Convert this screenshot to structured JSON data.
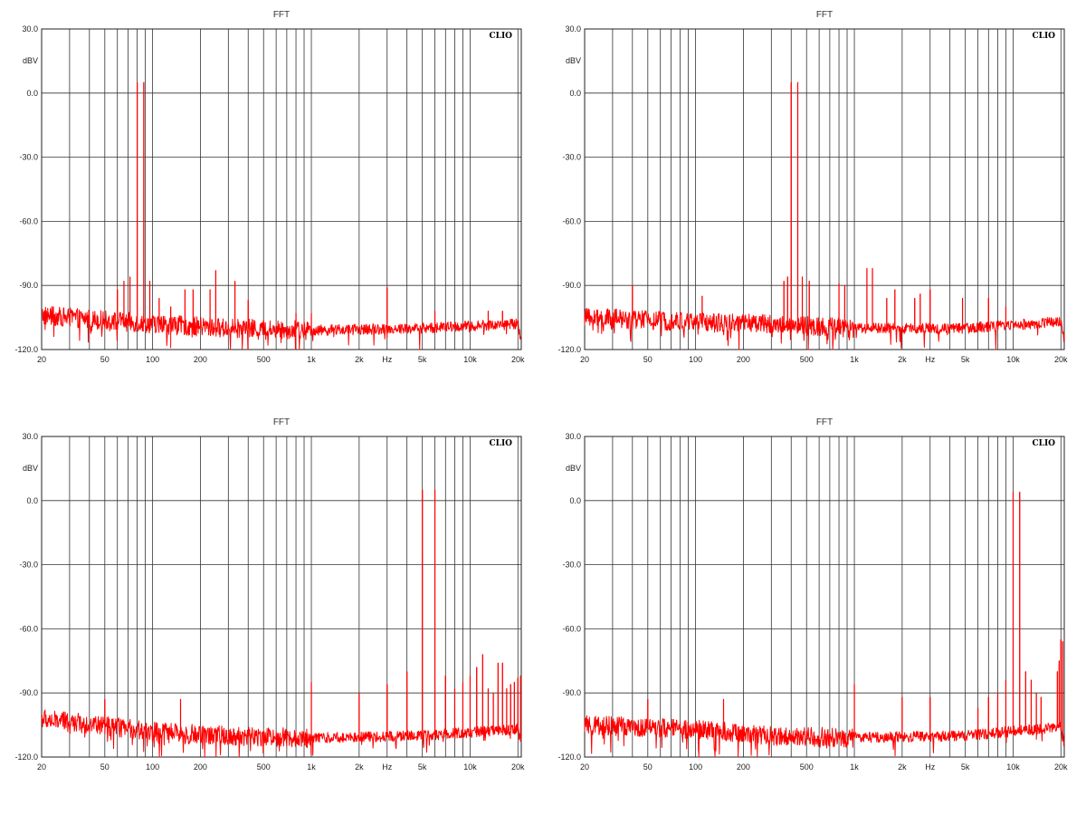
{
  "chart_data": [
    {
      "type": "line",
      "title": "FFT",
      "ylabel": "dBV",
      "xlabel": "Hz",
      "brand": "CLIO",
      "x_scale": "log",
      "xlim": [
        20,
        21000
      ],
      "ylim": [
        -120,
        30
      ],
      "grid": true,
      "y_ticks": [
        30,
        0,
        -30,
        -60,
        -90,
        -120
      ],
      "y_tick_labels": [
        "30.0",
        "0.0",
        "-30.0",
        "-60.0",
        "-90.0",
        "-120.0"
      ],
      "x_ticks": [
        20,
        50,
        100,
        200,
        500,
        1000,
        2000,
        3000,
        5000,
        10000,
        20000
      ],
      "x_tick_labels": [
        "20",
        "50",
        "100",
        "200",
        "500",
        "1k",
        "2k",
        "Hz",
        "5k",
        "10k",
        "20k"
      ],
      "color": "#ff0000",
      "noise_floor": [
        [
          20,
          -104
        ],
        [
          100,
          -108
        ],
        [
          300,
          -110
        ],
        [
          1000,
          -111
        ],
        [
          5000,
          -110
        ],
        [
          20000,
          -108
        ],
        [
          21000,
          -115
        ]
      ],
      "peaks": [
        [
          80,
          5
        ],
        [
          88,
          5
        ],
        [
          66,
          -88
        ],
        [
          72,
          -86
        ],
        [
          96,
          -88
        ],
        [
          60,
          -92
        ],
        [
          110,
          -96
        ],
        [
          130,
          -100
        ],
        [
          160,
          -92
        ],
        [
          180,
          -92
        ],
        [
          230,
          -92
        ],
        [
          250,
          -83
        ],
        [
          330,
          -88
        ],
        [
          400,
          -97
        ],
        [
          800,
          -103
        ],
        [
          1000,
          -103
        ],
        [
          3000,
          -91
        ],
        [
          5000,
          -108
        ],
        [
          6000,
          -102
        ],
        [
          13000,
          -102
        ],
        [
          16000,
          -102
        ]
      ]
    },
    {
      "type": "line",
      "title": "FFT",
      "ylabel": "dBV",
      "xlabel": "Hz",
      "brand": "CLIO",
      "x_scale": "log",
      "xlim": [
        20,
        21000
      ],
      "ylim": [
        -120,
        30
      ],
      "grid": true,
      "y_ticks": [
        30,
        0,
        -30,
        -60,
        -90,
        -120
      ],
      "y_tick_labels": [
        "30.0",
        "0.0",
        "-30.0",
        "-60.0",
        "-90.0",
        "-120.0"
      ],
      "x_ticks": [
        20,
        50,
        100,
        200,
        500,
        1000,
        2000,
        3000,
        5000,
        10000,
        20000
      ],
      "x_tick_labels": [
        "20",
        "50",
        "100",
        "200",
        "500",
        "1k",
        "2k",
        "Hz",
        "5k",
        "10k",
        "20k"
      ],
      "color": "#ff0000",
      "noise_floor": [
        [
          20,
          -105
        ],
        [
          100,
          -107
        ],
        [
          300,
          -108
        ],
        [
          1000,
          -110
        ],
        [
          5000,
          -110
        ],
        [
          20000,
          -107
        ],
        [
          21000,
          -115
        ]
      ],
      "peaks": [
        [
          400,
          5
        ],
        [
          440,
          5
        ],
        [
          360,
          -88
        ],
        [
          380,
          -86
        ],
        [
          470,
          -86
        ],
        [
          520,
          -88
        ],
        [
          40,
          -90
        ],
        [
          110,
          -95
        ],
        [
          800,
          -89
        ],
        [
          870,
          -90
        ],
        [
          1200,
          -82
        ],
        [
          1300,
          -82
        ],
        [
          1600,
          -96
        ],
        [
          1800,
          -92
        ],
        [
          2400,
          -96
        ],
        [
          2600,
          -94
        ],
        [
          3000,
          -92
        ],
        [
          4800,
          -96
        ],
        [
          7000,
          -96
        ],
        [
          9000,
          -100
        ]
      ]
    },
    {
      "type": "line",
      "title": "FFT",
      "ylabel": "dBV",
      "xlabel": "Hz",
      "brand": "CLIO",
      "x_scale": "log",
      "xlim": [
        20,
        21000
      ],
      "ylim": [
        -120,
        30
      ],
      "grid": true,
      "y_ticks": [
        30,
        0,
        -30,
        -60,
        -90,
        -120
      ],
      "y_tick_labels": [
        "30.0",
        "0.0",
        "-30.0",
        "-60.0",
        "-90.0",
        "-120.0"
      ],
      "x_ticks": [
        20,
        50,
        100,
        200,
        500,
        1000,
        2000,
        3000,
        5000,
        10000,
        20000
      ],
      "x_tick_labels": [
        "20",
        "50",
        "100",
        "200",
        "500",
        "1k",
        "2k",
        "Hz",
        "5k",
        "10k",
        "20k"
      ],
      "color": "#ff0000",
      "noise_floor": [
        [
          20,
          -102
        ],
        [
          100,
          -108
        ],
        [
          300,
          -110
        ],
        [
          1000,
          -111
        ],
        [
          5000,
          -110
        ],
        [
          20000,
          -107
        ],
        [
          21000,
          -114
        ]
      ],
      "peaks": [
        [
          5000,
          5
        ],
        [
          6000,
          5
        ],
        [
          1000,
          -85
        ],
        [
          2000,
          -90
        ],
        [
          3000,
          -86
        ],
        [
          4000,
          -80
        ],
        [
          7000,
          -82
        ],
        [
          8000,
          -88
        ],
        [
          9000,
          -85
        ],
        [
          10000,
          -82
        ],
        [
          11000,
          -78
        ],
        [
          12000,
          -72
        ],
        [
          13000,
          -88
        ],
        [
          14000,
          -90
        ],
        [
          15000,
          -76
        ],
        [
          16000,
          -76
        ],
        [
          17000,
          -88
        ],
        [
          18000,
          -86
        ],
        [
          19000,
          -85
        ],
        [
          20000,
          -83
        ],
        [
          20800,
          -82
        ],
        [
          50,
          -93
        ],
        [
          150,
          -93
        ]
      ]
    },
    {
      "type": "line",
      "title": "FFT",
      "ylabel": "dBV",
      "xlabel": "Hz",
      "brand": "CLIO",
      "x_scale": "log",
      "xlim": [
        20,
        21000
      ],
      "ylim": [
        -120,
        30
      ],
      "grid": true,
      "y_ticks": [
        30,
        0,
        -30,
        -60,
        -90,
        -120
      ],
      "y_tick_labels": [
        "30.0",
        "0.0",
        "-30.0",
        "-60.0",
        "-90.0",
        "-120.0"
      ],
      "x_ticks": [
        20,
        50,
        100,
        200,
        500,
        1000,
        2000,
        3000,
        5000,
        10000,
        20000
      ],
      "x_tick_labels": [
        "20",
        "50",
        "100",
        "200",
        "500",
        "1k",
        "2k",
        "Hz",
        "5k",
        "10k",
        "20k"
      ],
      "color": "#ff0000",
      "noise_floor": [
        [
          20,
          -105
        ],
        [
          100,
          -107
        ],
        [
          300,
          -110
        ],
        [
          1000,
          -111
        ],
        [
          5000,
          -110
        ],
        [
          20000,
          -106
        ],
        [
          21000,
          -114
        ]
      ],
      "peaks": [
        [
          10000,
          4
        ],
        [
          11000,
          4
        ],
        [
          9000,
          -84
        ],
        [
          12000,
          -80
        ],
        [
          13000,
          -84
        ],
        [
          8000,
          -90
        ],
        [
          14000,
          -90
        ],
        [
          7000,
          -92
        ],
        [
          15000,
          -92
        ],
        [
          6000,
          -97
        ],
        [
          19000,
          -80
        ],
        [
          19500,
          -75
        ],
        [
          20000,
          -65
        ],
        [
          20500,
          -66
        ],
        [
          1000,
          -86
        ],
        [
          2000,
          -92
        ],
        [
          3000,
          -92
        ],
        [
          50,
          -93
        ],
        [
          150,
          -93
        ]
      ]
    }
  ]
}
